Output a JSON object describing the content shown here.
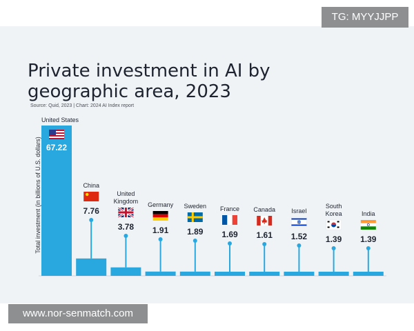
{
  "watermarks": {
    "top_right": "TG: MYYJJPP",
    "bottom_left": "www.nor-senmatch.com"
  },
  "chart_data": {
    "type": "bar",
    "title": "Private investment in AI by geographic area, 2023",
    "title_lines": [
      "Private investment in AI by",
      "geographic area, 2023"
    ],
    "source": "Source: Quid, 2023 | Chart: 2024 AI Index report",
    "ylabel": "Total investment (in billions of U.S. dollars)",
    "xlabel": "",
    "categories": [
      "United States",
      "China",
      "United Kingdom",
      "Germany",
      "Sweden",
      "France",
      "Canada",
      "Israel",
      "South Korea",
      "India"
    ],
    "values": [
      67.22,
      7.76,
      3.78,
      1.91,
      1.89,
      1.69,
      1.61,
      1.52,
      1.39,
      1.39
    ],
    "value_labels": [
      "67.22",
      "7.76",
      "3.78",
      "1.91",
      "1.89",
      "1.69",
      "1.61",
      "1.52",
      "1.39",
      "1.39"
    ],
    "flag_icons": [
      "us-flag-icon",
      "china-flag-icon",
      "uk-flag-icon",
      "germany-flag-icon",
      "sweden-flag-icon",
      "france-flag-icon",
      "canada-flag-icon",
      "israel-flag-icon",
      "south-korea-flag-icon",
      "india-flag-icon"
    ],
    "ylim": [
      0,
      67.22
    ],
    "grid": false,
    "colors": {
      "bar": "#29a8e0",
      "background": "#f0f3f6",
      "text": "#1d2430"
    }
  }
}
